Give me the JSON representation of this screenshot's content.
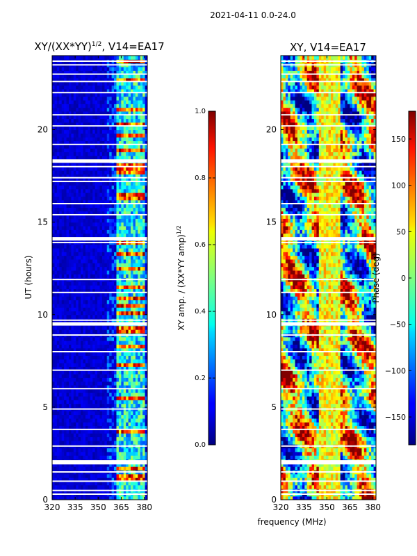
{
  "figure": {
    "suptitle": "2021-04-11 0.0-24.0",
    "xlabel": "frequency (MHz)"
  },
  "chart_data": [
    {
      "type": "heatmap",
      "title_main": "XY/(XX*YY)",
      "title_sup": "1/2",
      "title_tail": ", V14=EA17",
      "ylabel": "UT (hours)",
      "x_ticks": [
        320,
        335,
        350,
        365,
        380
      ],
      "y_ticks": [
        0,
        5,
        10,
        15,
        20
      ],
      "xlim": [
        320,
        382
      ],
      "ylim": [
        0,
        24
      ],
      "colorbar": {
        "label_main": "XY amp. / (XX*YY amp)",
        "label_sup": "1/2",
        "ticks": [
          "0.0",
          "0.2",
          "0.4",
          "0.6",
          "0.8",
          "1.0"
        ],
        "range": [
          0,
          1
        ]
      },
      "colormap": "jet",
      "bright_bands_mhz": [
        [
          362,
          368
        ],
        [
          368,
          373
        ],
        [
          373,
          378
        ],
        [
          378,
          381
        ]
      ],
      "gap_hours": [
        0.3,
        0.5,
        1.0,
        1.5,
        2.0,
        2.1,
        2.9,
        3.8,
        4.9,
        6.0,
        7.0,
        8.0,
        8.9,
        9.5,
        9.7,
        11.2,
        11.9,
        13.9,
        14.1,
        15.4,
        16.0,
        17.2,
        17.4,
        18.0,
        18.3,
        19.2,
        20.2,
        20.8,
        22.0,
        22.6,
        23.0,
        23.5,
        23.7
      ]
    },
    {
      "type": "heatmap",
      "title": "XY, V14=EA17",
      "x_ticks": [
        320,
        335,
        350,
        365,
        380
      ],
      "y_ticks": [
        0,
        5,
        10,
        15,
        20
      ],
      "xlim": [
        320,
        382
      ],
      "ylim": [
        0,
        24
      ],
      "colorbar": {
        "label": "Phase (deg)",
        "ticks": [
          "150",
          "100",
          "50",
          "0",
          "−50",
          "−100",
          "−150"
        ],
        "tick_values": [
          150,
          100,
          50,
          0,
          -50,
          -100,
          -150
        ],
        "range": [
          -180,
          180
        ]
      },
      "colormap": "jet",
      "gap_hours": [
        0.3,
        0.5,
        1.0,
        1.5,
        2.0,
        2.1,
        2.9,
        3.8,
        4.9,
        6.0,
        7.0,
        8.0,
        8.9,
        9.5,
        9.7,
        11.2,
        11.9,
        13.9,
        14.1,
        15.4,
        16.0,
        17.2,
        17.4,
        18.0,
        18.3,
        19.2,
        20.2,
        20.8,
        22.0,
        22.6,
        23.0,
        23.5,
        23.7
      ]
    }
  ]
}
